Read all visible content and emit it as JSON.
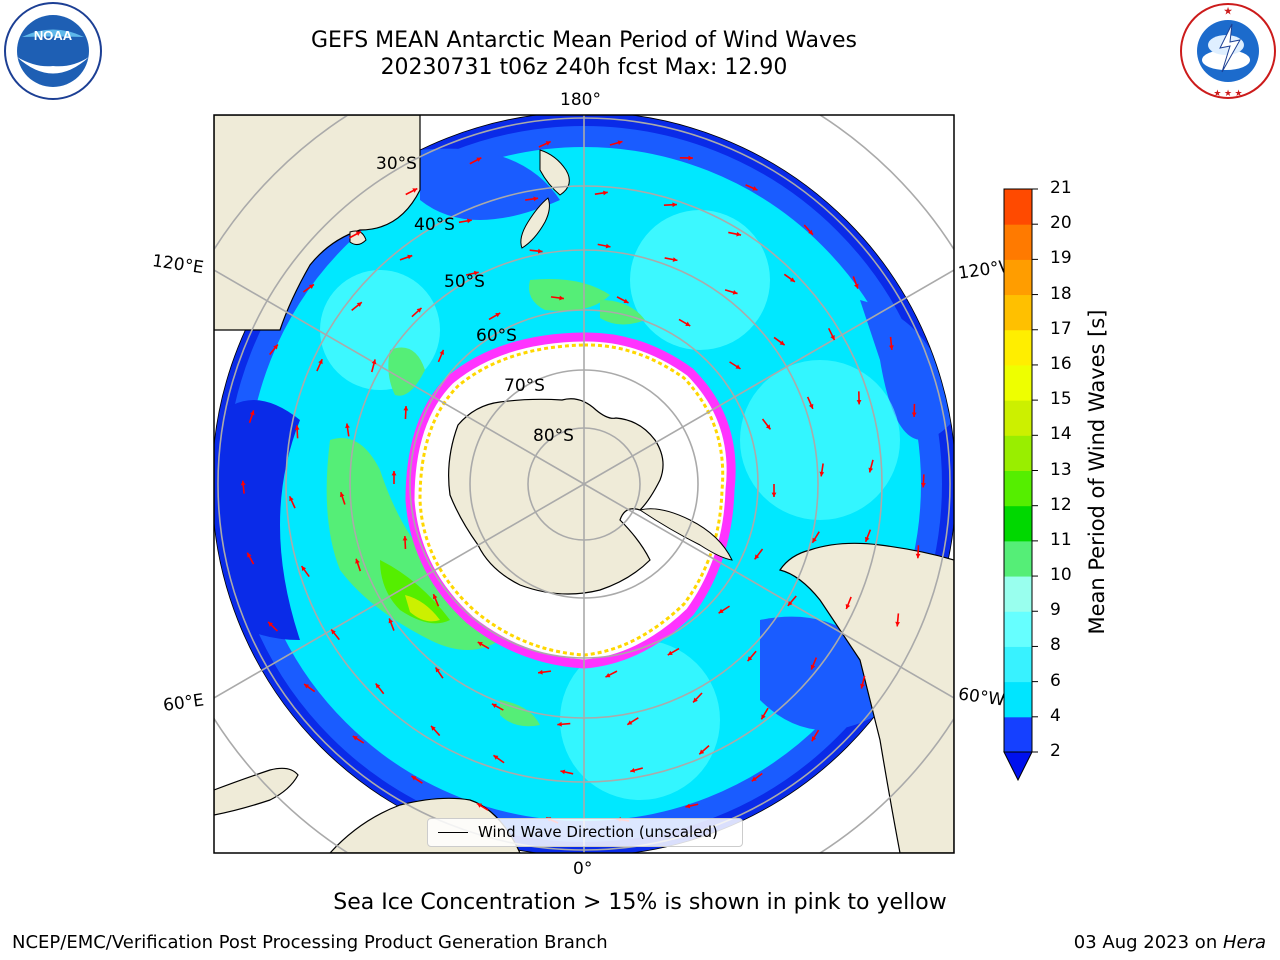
{
  "header": {
    "title_line1": "GEFS MEAN Antarctic Mean Period of Wind Waves",
    "title_line2": "20230731 t06z 240h fcst   Max: 12.90"
  },
  "logos": {
    "noaa": {
      "text": "NOAA",
      "icon": "noaa-logo-icon",
      "ring_text": "NATIONAL OCEANIC AND ATMOSPHERIC ADMINISTRATION · U.S. DEPARTMENT OF COMMERCE"
    },
    "nws": {
      "icon": "nws-logo-icon",
      "ring_text": "NATIONAL WEATHER SERVICE"
    }
  },
  "map": {
    "projection": "south-polar stereographic",
    "longitude_labels": [
      "180°",
      "0°",
      "120°E",
      "120°W",
      "60°E",
      "60°W"
    ],
    "latitude_labels": [
      "30°S",
      "40°S",
      "50°S",
      "60°S",
      "70°S",
      "80°S"
    ],
    "legend": "Wind Wave Direction (unscaled)",
    "arrow_color": "#ff0000",
    "land_color": "#efebd8",
    "ice_edge_colors": [
      "#ff33ff",
      "#ffd700"
    ]
  },
  "colorbar": {
    "title": "Mean Period of Wind Waves [s]",
    "ticks": [
      "2",
      "4",
      "6",
      "8",
      "9",
      "10",
      "11",
      "12",
      "13",
      "14",
      "15",
      "16",
      "17",
      "18",
      "19",
      "20",
      "21"
    ],
    "colors": [
      "#1540ff",
      "#00e5ff",
      "#38f2ff",
      "#66ffff",
      "#99ffee",
      "#55ee77",
      "#00d800",
      "#55ee00",
      "#99ee00",
      "#ccf000",
      "#eeff00",
      "#ffee00",
      "#ffc000",
      "#ff9d00",
      "#ff7a00",
      "#ff4a00",
      "#ff0000"
    ],
    "under_color": "#0011ee"
  },
  "footer": {
    "note": "Sea Ice Concentration > 15% is shown in pink to yellow",
    "credit_left": "NCEP/EMC/Verification Post Processing Product Generation Branch",
    "credit_right_date": "03 Aug 2023 on ",
    "credit_right_host": "Hera"
  }
}
